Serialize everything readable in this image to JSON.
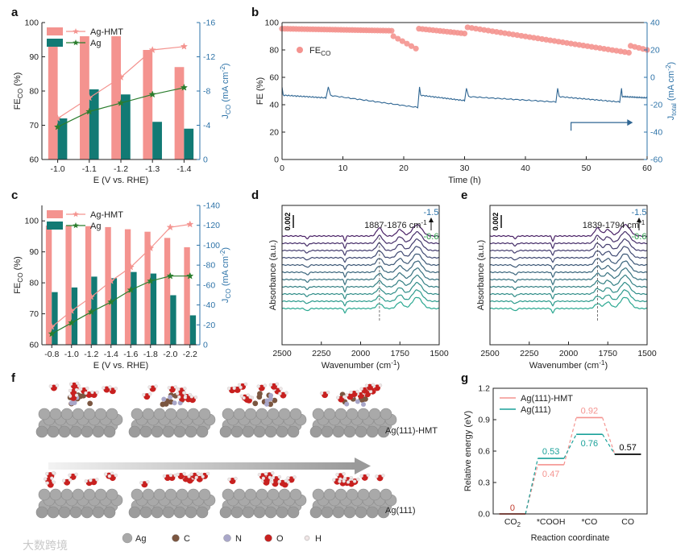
{
  "panel_letters": [
    "a",
    "b",
    "c",
    "d",
    "e",
    "f",
    "g"
  ],
  "colors": {
    "hmt": "#f4938f",
    "ag": "#127a74",
    "green": "#2a7d2d",
    "blue": "#2f6693",
    "axis_blue": "#2e73a8",
    "teal": "#1aa19a"
  },
  "chart_data": [
    {
      "id": "a",
      "type": "bar",
      "categories": [
        "-1.0",
        "-1.1",
        "-1.2",
        "-1.3",
        "-1.4"
      ],
      "xlabel": "E (V vs. RHE)",
      "ylabel": "FE_CO (%)",
      "y2label": "J_CO (mA cm^-2)",
      "ylim": [
        60,
        100
      ],
      "yticks": [
        60,
        70,
        80,
        90,
        100
      ],
      "y2lim": [
        0,
        -16
      ],
      "y2ticks": [
        0,
        -4,
        -8,
        -12,
        -16
      ],
      "series": [
        {
          "name": "Ag-HMT",
          "kind": "bar",
          "axis": "left",
          "values": [
            94,
            96,
            96,
            92,
            87
          ]
        },
        {
          "name": "Ag",
          "kind": "bar",
          "axis": "left",
          "values": [
            72,
            80.5,
            79,
            71,
            69
          ]
        },
        {
          "name": "Ag-HMT",
          "kind": "line",
          "axis": "right",
          "values": [
            -4.8,
            -7.2,
            -9.6,
            -12.8,
            -13.2
          ]
        },
        {
          "name": "Ag",
          "kind": "line",
          "axis": "right",
          "values": [
            -3.8,
            -5.6,
            -6.6,
            -7.6,
            -8.4
          ]
        }
      ]
    },
    {
      "id": "b",
      "type": "scatter",
      "xlabel": "Time (h)",
      "ylabel": "FE (%)",
      "y2label": "J_total (mA cm^-2)",
      "xlim": [
        0,
        60
      ],
      "xticks": [
        0,
        10,
        20,
        30,
        40,
        50,
        60
      ],
      "ylim": [
        0,
        100
      ],
      "yticks": [
        0,
        20,
        40,
        60,
        80,
        100
      ],
      "y2lim": [
        -60,
        40
      ],
      "y2ticks": [
        -60,
        -40,
        -20,
        0,
        20,
        40
      ],
      "legend": "FE_CO",
      "fe_segments": [
        {
          "x": [
            0,
            18
          ],
          "y": [
            95.5,
            94
          ],
          "n": 40
        },
        {
          "x": [
            18.3,
            22
          ],
          "y": [
            90,
            81
          ],
          "n": 6
        },
        {
          "x": [
            22.5,
            30
          ],
          "y": [
            95.5,
            92
          ],
          "n": 14
        },
        {
          "x": [
            30.5,
            57
          ],
          "y": [
            96.5,
            78
          ],
          "n": 40
        },
        {
          "x": [
            57.3,
            60
          ],
          "y": [
            83,
            80
          ],
          "n": 5
        }
      ],
      "current_segments": [
        {
          "x": [
            0,
            7.2
          ],
          "y": [
            -13,
            -15
          ]
        },
        {
          "x": [
            7.6,
            22.3
          ],
          "y": [
            -13,
            -22
          ]
        },
        {
          "x": [
            22.6,
            30
          ],
          "y": [
            -13,
            -17
          ]
        },
        {
          "x": [
            30.3,
            45
          ],
          "y": [
            -14,
            -18
          ]
        },
        {
          "x": [
            45.3,
            55.5
          ],
          "y": [
            -14,
            -18
          ]
        },
        {
          "x": [
            55.8,
            60
          ],
          "y": [
            -14,
            -15
          ]
        }
      ],
      "arrow": {
        "x": [
          47.5,
          57
        ],
        "y": -33
      }
    },
    {
      "id": "c",
      "type": "bar",
      "categories": [
        "-0.8",
        "-1.0",
        "-1.2",
        "-1.4",
        "-1.6",
        "-1.8",
        "-2.0",
        "-2.2"
      ],
      "xlabel": "E (V vs. RHE)",
      "ylabel": "FE_CO (%)",
      "y2label": "J_CO (mA cm^-2)",
      "ylim": [
        60,
        105
      ],
      "yticks": [
        60,
        70,
        80,
        90,
        100
      ],
      "y2lim": [
        0,
        -140
      ],
      "y2ticks": [
        0,
        -20,
        -40,
        -60,
        -80,
        -100,
        -120,
        -140
      ],
      "series": [
        {
          "name": "Ag-HMT",
          "kind": "bar",
          "axis": "left",
          "values": [
            98.5,
            98.5,
            98.3,
            98,
            97.3,
            96.5,
            94.5,
            91.5
          ]
        },
        {
          "name": "Ag",
          "kind": "bar",
          "axis": "left",
          "values": [
            77,
            78.5,
            82,
            81.5,
            83.5,
            83,
            76,
            69.5
          ]
        },
        {
          "name": "Ag-HMT",
          "kind": "line",
          "axis": "right",
          "values": [
            -18,
            -34,
            -48,
            -64,
            -78,
            -97,
            -118,
            -121
          ]
        },
        {
          "name": "Ag",
          "kind": "line",
          "axis": "right",
          "values": [
            -11,
            -22,
            -33,
            -43,
            -55,
            -64,
            -69,
            -69
          ]
        }
      ]
    },
    {
      "id": "d",
      "type": "line",
      "xlabel": "Wavenumber (cm^-1)",
      "ylabel": "Absorbance (a.u.)",
      "xlim": [
        2500,
        1500
      ],
      "xticks": [
        2500,
        2250,
        2000,
        1750,
        1500
      ],
      "annotation": "1887-1876 cm^-1",
      "scale_label": "0.002",
      "range_top": "-1.5",
      "range_bottom": "-0.6",
      "peak": 1880,
      "n_spectra": 11
    },
    {
      "id": "e",
      "type": "line",
      "xlabel": "Wavenumber (cm^-1)",
      "ylabel": "Absorbance (a.u.)",
      "xlim": [
        2500,
        1500
      ],
      "xticks": [
        2500,
        2250,
        2000,
        1750,
        1500
      ],
      "annotation": "1839-1794 cm^-1",
      "scale_label": "0.002",
      "range_top": "-1.5",
      "range_bottom": "-0.6",
      "peak": 1815,
      "n_spectra": 11
    },
    {
      "id": "g",
      "type": "line",
      "ylabel": "Relative energy (eV)",
      "xlabel": "Reaction coordinate",
      "ylim": [
        0,
        1.2
      ],
      "yticks": [
        0.0,
        0.3,
        0.6,
        0.9,
        1.2
      ],
      "categories": [
        "CO2",
        "*COOH",
        "*CO",
        "CO"
      ],
      "series": [
        {
          "name": "Ag(111)-HMT",
          "values": [
            0,
            0.47,
            0.92,
            0.57
          ]
        },
        {
          "name": "Ag(111)",
          "values": [
            0,
            0.53,
            0.76,
            0.57
          ]
        }
      ],
      "labels": {
        "co2": "0",
        "co": "0.57",
        "hmt_cooh": "0.47",
        "hmt_co": "0.92",
        "ag_cooh": "0.53",
        "ag_co": "0.76"
      }
    }
  ],
  "panel_f": {
    "row_labels": [
      "Ag(111)-HMT",
      "Ag(111)"
    ],
    "legend": [
      "Ag",
      "C",
      "N",
      "O",
      "H"
    ]
  },
  "watermark": "大数跨境"
}
